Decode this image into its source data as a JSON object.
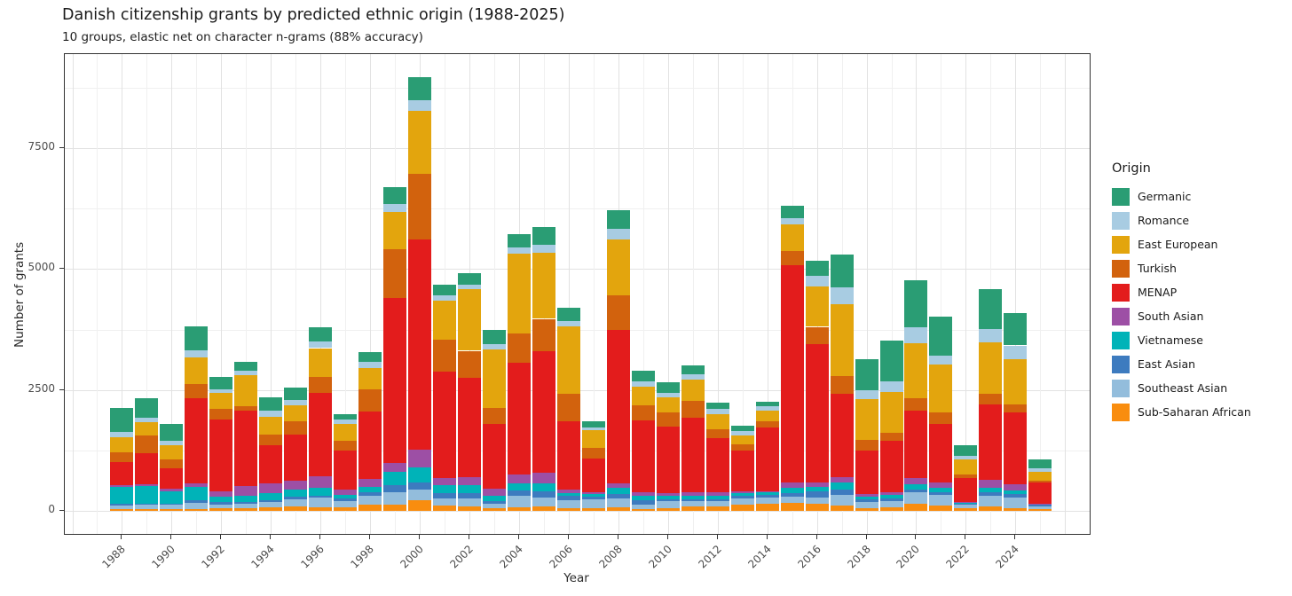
{
  "title": "Danish citizenship grants by predicted ethnic origin (1988-2025)",
  "subtitle": "10 groups, elastic net on character n-grams (88% accuracy)",
  "chart_data": {
    "type": "bar",
    "stacked": true,
    "title": "Danish citizenship grants by predicted ethnic origin (1988-2025)",
    "subtitle": "10 groups, elastic net on character n-grams (88% accuracy)",
    "xlabel": "Year",
    "ylabel": "Number of grants",
    "ylim": [
      0,
      9200
    ],
    "yticks": [
      0,
      2500,
      5000,
      7500
    ],
    "yticks_minor": [
      1250,
      3750,
      6250,
      8750
    ],
    "xticks": [
      1988,
      1990,
      1992,
      1994,
      1996,
      1998,
      2000,
      2002,
      2004,
      2006,
      2008,
      2010,
      2012,
      2014,
      2016,
      2018,
      2020,
      2022,
      2024
    ],
    "grid": true,
    "legend_title": "Origin",
    "legend_position": "right",
    "categories": [
      1988,
      1989,
      1990,
      1991,
      1992,
      1993,
      1994,
      1995,
      1996,
      1997,
      1998,
      1999,
      2000,
      2001,
      2002,
      2003,
      2004,
      2005,
      2006,
      2007,
      2008,
      2009,
      2010,
      2011,
      2012,
      2013,
      2014,
      2015,
      2016,
      2017,
      2018,
      2019,
      2020,
      2021,
      2022,
      2023,
      2024,
      2025
    ],
    "stack_order_note": "series listed top-of-legend first; bars stack with last series at bottom",
    "series": [
      {
        "name": "Germanic",
        "color": "#2a9d74",
        "values": [
          500,
          410,
          340,
          505,
          265,
          200,
          275,
          265,
          305,
          110,
          215,
          335,
          470,
          225,
          230,
          285,
          275,
          365,
          280,
          120,
          380,
          215,
          215,
          185,
          135,
          120,
          90,
          245,
          320,
          685,
          650,
          855,
          980,
          805,
          230,
          825,
          675,
          180
        ]
      },
      {
        "name": "Romance",
        "color": "#a8cce2",
        "values": [
          110,
          90,
          85,
          135,
          80,
          80,
          130,
          105,
          135,
          75,
          125,
          170,
          215,
          110,
          105,
          105,
          125,
          155,
          105,
          60,
          215,
          120,
          105,
          105,
          100,
          80,
          90,
          125,
          215,
          335,
          185,
          210,
          325,
          185,
          75,
          275,
          285,
          80
        ]
      },
      {
        "name": "East European",
        "color": "#e3a50d",
        "values": [
          310,
          275,
          295,
          555,
          320,
          640,
          360,
          335,
          600,
          355,
          430,
          765,
          1315,
          805,
          1270,
          1210,
          1650,
          1375,
          1405,
          365,
          1160,
          385,
          305,
          440,
          305,
          195,
          225,
          550,
          840,
          1500,
          835,
          855,
          1145,
          990,
          305,
          1065,
          935,
          185
        ]
      },
      {
        "name": "Turkish",
        "color": "#d2620d",
        "values": [
          200,
          365,
          185,
          300,
          215,
          90,
          230,
          275,
          335,
          200,
          460,
          1020,
          1345,
          660,
          560,
          335,
          610,
          670,
          570,
          210,
          720,
          305,
          295,
          355,
          195,
          120,
          120,
          305,
          365,
          365,
          225,
          160,
          245,
          245,
          80,
          220,
          165,
          25
        ]
      },
      {
        "name": "MENAP",
        "color": "#e31c1c",
        "values": [
          480,
          640,
          435,
          1750,
          1495,
          1560,
          780,
          950,
          1710,
          805,
          1405,
          3400,
          4350,
          2215,
          2050,
          1345,
          2310,
          2520,
          1405,
          700,
          3180,
          1485,
          1375,
          1545,
          1120,
          855,
          1320,
          4495,
          2860,
          1725,
          905,
          1065,
          1405,
          1210,
          490,
          1560,
          1485,
          445
        ]
      },
      {
        "name": "South Asian",
        "color": "#9d4fa5",
        "values": [
          30,
          35,
          55,
          85,
          105,
          215,
          210,
          185,
          245,
          120,
          155,
          185,
          365,
          135,
          165,
          140,
          185,
          220,
          75,
          45,
          90,
          75,
          60,
          75,
          75,
          30,
          25,
          105,
          80,
          110,
          50,
          60,
          120,
          110,
          20,
          165,
          135,
          10
        ]
      },
      {
        "name": "Vietnamese",
        "color": "#00b3b8",
        "values": [
          360,
          365,
          245,
          275,
          120,
          120,
          140,
          155,
          155,
          75,
          120,
          275,
          305,
          170,
          170,
          105,
          145,
          165,
          60,
          60,
          120,
          90,
          60,
          60,
          60,
          50,
          50,
          110,
          105,
          135,
          60,
          60,
          105,
          85,
          25,
          90,
          75,
          20
        ]
      },
      {
        "name": "East Asian",
        "color": "#3d7bbf",
        "values": [
          30,
          30,
          30,
          50,
          50,
          45,
          45,
          40,
          50,
          50,
          75,
          155,
          155,
          110,
          110,
          60,
          110,
          120,
          80,
          55,
          90,
          90,
          40,
          50,
          50,
          60,
          60,
          75,
          120,
          110,
          45,
          60,
          60,
          60,
          20,
          60,
          60,
          25
        ]
      },
      {
        "name": "Southeast Asian",
        "color": "#93bddc",
        "values": [
          80,
          80,
          90,
          120,
          75,
          80,
          115,
          160,
          195,
          125,
          170,
          245,
          215,
          145,
          165,
          90,
          235,
          185,
          165,
          170,
          180,
          90,
          145,
          105,
          105,
          135,
          135,
          120,
          135,
          230,
          125,
          125,
          245,
          220,
          60,
          230,
          220,
          60
        ]
      },
      {
        "name": "Sub-Saharan African",
        "color": "#f98d0f",
        "values": [
          30,
          45,
          30,
          45,
          50,
          60,
          65,
          85,
          75,
          75,
          135,
          135,
          225,
          110,
          90,
          60,
          75,
          90,
          60,
          60,
          80,
          45,
          60,
          90,
          90,
          120,
          140,
          170,
          140,
          105,
          60,
          80,
          140,
          105,
          60,
          90,
          60,
          35
        ]
      }
    ]
  }
}
